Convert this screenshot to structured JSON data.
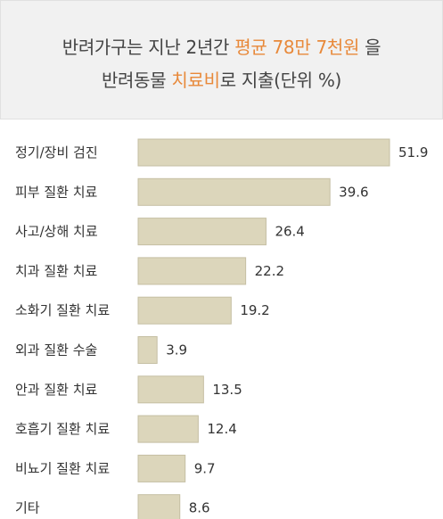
{
  "header": {
    "line1_prefix": "반려가구는 지난 2년간 ",
    "line1_highlight": "평균 78만 7천원",
    "line1_suffix": " 을",
    "line2_prefix": "반려동물 ",
    "line2_highlight": "치료비",
    "line2_suffix": "로 지출(단위 %)"
  },
  "colors": {
    "highlight": "#e8893a",
    "bar_fill": "#dcd6bb",
    "header_bg": "#f1f1f1"
  },
  "chart_data": {
    "type": "bar",
    "orientation": "horizontal",
    "title": "반려가구는 지난 2년간 평균 78만 7천원 을 반려동물 치료비로 지출(단위 %)",
    "categories": [
      "정기/장비 검진",
      "피부 질환 치료",
      "사고/상해 치료",
      "치과 질환 치료",
      "소화기 질환 치료",
      "외과 질환 수술",
      "안과 질환 치료",
      "호흡기 질환 치료",
      "비뇨기 질환 치료",
      "기타"
    ],
    "values": [
      51.9,
      39.6,
      26.4,
      22.2,
      19.2,
      3.9,
      13.5,
      12.4,
      9.7,
      8.6
    ],
    "value_labels": [
      "51.9",
      "39.6",
      "26.4",
      "22.2",
      "19.2",
      "3.9",
      "13.5",
      "12.4",
      "9.7",
      "8.6"
    ],
    "xlim": [
      0,
      51.9
    ],
    "grid": false
  }
}
